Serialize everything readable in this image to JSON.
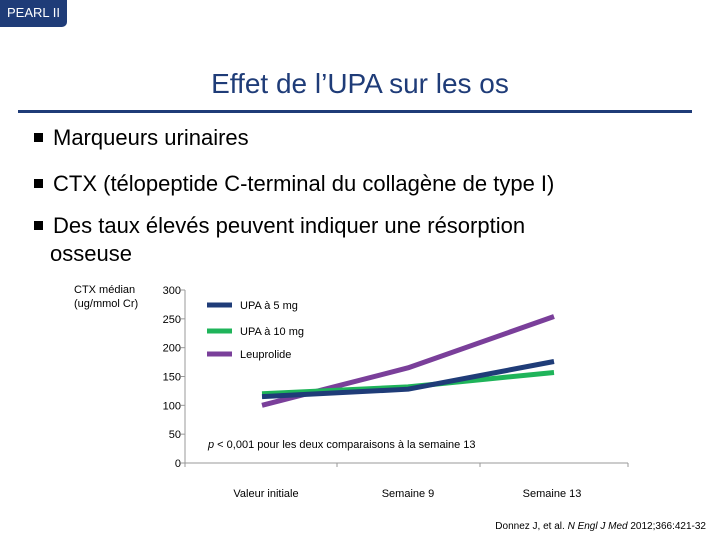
{
  "header": {
    "tag": "PEARL II",
    "title": "Effet de l’UPA sur les os"
  },
  "bullets": [
    "Marqueurs urinaires",
    "CTX (télopeptide C-terminal du collagène de type I)",
    "Des taux élevés peuvent indiquer une résorption",
    "osseuse"
  ],
  "chart_data": {
    "type": "line",
    "ylabel_lines": [
      "CTX médian",
      "(ug/mmol Cr)"
    ],
    "ylim": [
      0,
      300
    ],
    "yticks": [
      0,
      50,
      100,
      150,
      200,
      250,
      300
    ],
    "categories": [
      "Valeur initiale",
      "Semaine 9",
      "Semaine 13"
    ],
    "series": [
      {
        "name": "UPA à 5 mg",
        "color": "#1f3c78",
        "values": [
          115,
          128,
          176
        ]
      },
      {
        "name": "UPA à 10 mg",
        "color": "#1fb45a",
        "values": [
          120,
          132,
          157
        ]
      },
      {
        "name": "Leuprolide",
        "color": "#7a3f9a",
        "values": [
          100,
          165,
          254
        ]
      }
    ],
    "legend_position": "top-left",
    "annotation": {
      "italic": "p",
      "text": " < 0,001 pour les deux comparaisons à la semaine 13"
    },
    "grid": false
  },
  "reference": {
    "authors": "Donnez J, et al. ",
    "journal": "N Engl J Med",
    "citation": " 2012;366:421-32"
  }
}
